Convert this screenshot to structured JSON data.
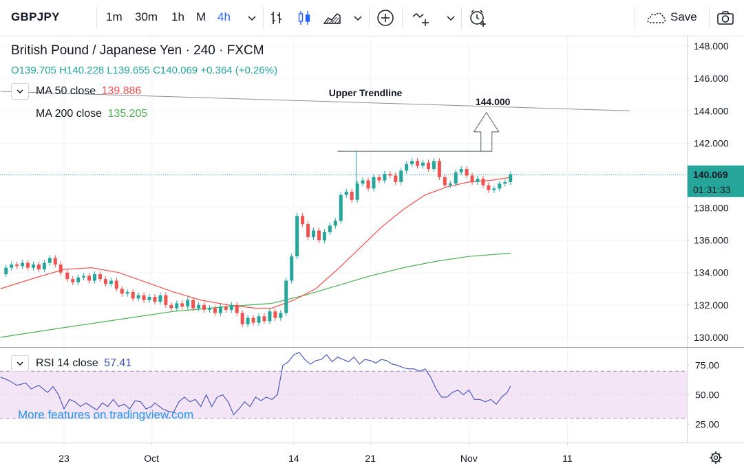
{
  "toolbar": {
    "symbol": "GBPJPY",
    "timeframes": [
      "1m",
      "30m",
      "1h",
      "M",
      "4h"
    ],
    "active_timeframe": "4h",
    "save_label": "Save"
  },
  "legend": {
    "title": "British Pound / Japanese Yen · 240 · FXCM",
    "open_label": "O",
    "open": "139.705",
    "high_label": "H",
    "high": "140.228",
    "low_label": "L",
    "low": "139.655",
    "close_label": "C",
    "close": "140.069",
    "change": "+0.364 (+0.26%)",
    "ma50_label": "MA 50 close",
    "ma50_value": "139.886",
    "ma200_label": "MA 200 close",
    "ma200_value": "135.205",
    "rsi_label": "RSI 14 close",
    "rsi_value": "57.41"
  },
  "promo": "More features on tradingview.com",
  "colors": {
    "up": "#26a69a",
    "down": "#ef5350",
    "ma50": "#ef5350",
    "ma200": "#4caf50",
    "rsi": "#3f51b5",
    "rsi_band": "#f3e5f5",
    "accent": "#2962ff"
  },
  "chart_data": {
    "type": "line",
    "price_axis": {
      "ticks": [
        "148.000",
        "146.000",
        "144.000",
        "142.000",
        "140.000",
        "138.000",
        "136.000",
        "134.000",
        "132.000",
        "130.000"
      ],
      "ylim": [
        129.4,
        148.6
      ]
    },
    "rsi_axis": {
      "ticks": [
        "75.00",
        "50.00",
        "25.00"
      ],
      "band": [
        30,
        70
      ],
      "ylim": [
        10,
        90
      ]
    },
    "x_ticks": [
      "23",
      "Oct",
      "14",
      "21",
      "Nov",
      "11"
    ],
    "x_tick_days": [
      0,
      8,
      21,
      28,
      37,
      46
    ],
    "last_price_label": "140.069",
    "countdown_label": "01:31:33",
    "annotations": {
      "trendline_label": "Upper Trendline",
      "target_label": "144.000"
    },
    "trendline": [
      [
        -5.8,
        145.2
      ],
      [
        51.7,
        144.0
      ]
    ],
    "target_start_price": 141.5,
    "price_path": [
      [
        -5.8,
        133.9
      ],
      [
        -5.3,
        134.3
      ],
      [
        -4.8,
        134.5
      ],
      [
        -4.3,
        134.4
      ],
      [
        -3.8,
        134.6
      ],
      [
        -3.3,
        134.3
      ],
      [
        -2.8,
        134.5
      ],
      [
        -2.3,
        134.2
      ],
      [
        -1.8,
        134.6
      ],
      [
        -1.3,
        134.9
      ],
      [
        -0.8,
        134.5
      ],
      [
        -0.3,
        134.0
      ],
      [
        0.3,
        133.6
      ],
      [
        0.8,
        133.4
      ],
      [
        1.3,
        133.7
      ],
      [
        1.8,
        133.8
      ],
      [
        2.3,
        133.5
      ],
      [
        2.8,
        133.9
      ],
      [
        3.3,
        133.6
      ],
      [
        3.8,
        133.3
      ],
      [
        4.3,
        133.5
      ],
      [
        4.8,
        133.0
      ],
      [
        5.3,
        132.7
      ],
      [
        5.8,
        132.8
      ],
      [
        6.3,
        132.4
      ],
      [
        6.8,
        132.6
      ],
      [
        7.3,
        132.3
      ],
      [
        7.8,
        132.5
      ],
      [
        8.3,
        132.2
      ],
      [
        8.8,
        132.6
      ],
      [
        9.3,
        132.0
      ],
      [
        9.8,
        131.8
      ],
      [
        10.3,
        132.1
      ],
      [
        10.8,
        131.9
      ],
      [
        11.3,
        132.3
      ],
      [
        11.8,
        131.8
      ],
      [
        12.3,
        132.0
      ],
      [
        12.8,
        131.7
      ],
      [
        13.3,
        131.8
      ],
      [
        13.8,
        131.5
      ],
      [
        14.3,
        131.9
      ],
      [
        14.8,
        131.7
      ],
      [
        15.3,
        132.0
      ],
      [
        15.8,
        131.5
      ],
      [
        16.3,
        130.8
      ],
      [
        16.8,
        131.2
      ],
      [
        17.3,
        130.9
      ],
      [
        17.8,
        131.3
      ],
      [
        18.3,
        131.0
      ],
      [
        18.8,
        131.6
      ],
      [
        19.3,
        131.2
      ],
      [
        19.8,
        131.5
      ],
      [
        20.3,
        133.5
      ],
      [
        20.8,
        135.0
      ],
      [
        21.3,
        137.5
      ],
      [
        21.8,
        137.0
      ],
      [
        22.3,
        136.2
      ],
      [
        22.8,
        136.6
      ],
      [
        23.3,
        136.0
      ],
      [
        23.8,
        136.5
      ],
      [
        24.3,
        136.9
      ],
      [
        24.8,
        137.2
      ],
      [
        25.3,
        138.8
      ],
      [
        25.8,
        139.0
      ],
      [
        26.3,
        138.5
      ],
      [
        26.8,
        139.5
      ],
      [
        27.3,
        139.7
      ],
      [
        27.8,
        139.2
      ],
      [
        28.3,
        139.9
      ],
      [
        28.8,
        139.7
      ],
      [
        29.3,
        140.1
      ],
      [
        29.8,
        140.0
      ],
      [
        30.3,
        139.6
      ],
      [
        30.8,
        140.3
      ],
      [
        31.3,
        140.7
      ],
      [
        31.8,
        140.9
      ],
      [
        32.3,
        140.6
      ],
      [
        32.8,
        140.8
      ],
      [
        33.3,
        140.4
      ],
      [
        33.8,
        140.9
      ],
      [
        34.3,
        139.9
      ],
      [
        34.8,
        139.4
      ],
      [
        35.3,
        139.5
      ],
      [
        35.8,
        140.2
      ],
      [
        36.3,
        140.4
      ],
      [
        36.8,
        140.0
      ],
      [
        37.3,
        139.6
      ],
      [
        37.8,
        139.8
      ],
      [
        38.3,
        139.4
      ],
      [
        38.8,
        139.1
      ],
      [
        39.3,
        139.2
      ],
      [
        39.8,
        139.5
      ],
      [
        40.3,
        139.6
      ],
      [
        40.8,
        140.069
      ]
    ],
    "ma50_path": [
      [
        -5.8,
        133.0
      ],
      [
        -3.0,
        133.6
      ],
      [
        0.0,
        134.2
      ],
      [
        2.5,
        134.3
      ],
      [
        5.0,
        134.0
      ],
      [
        7.5,
        133.4
      ],
      [
        10.0,
        132.8
      ],
      [
        12.5,
        132.3
      ],
      [
        15.0,
        132.0
      ],
      [
        17.5,
        131.8
      ],
      [
        19.0,
        131.8
      ],
      [
        21.0,
        132.3
      ],
      [
        23.0,
        133.0
      ],
      [
        25.0,
        134.2
      ],
      [
        27.0,
        135.5
      ],
      [
        29.0,
        136.8
      ],
      [
        31.0,
        137.9
      ],
      [
        33.0,
        138.8
      ],
      [
        35.0,
        139.3
      ],
      [
        37.0,
        139.6
      ],
      [
        39.0,
        139.7
      ],
      [
        40.8,
        139.886
      ]
    ],
    "ma200_path": [
      [
        -5.8,
        130.0
      ],
      [
        0.0,
        130.6
      ],
      [
        5.0,
        131.1
      ],
      [
        10.0,
        131.6
      ],
      [
        15.0,
        131.9
      ],
      [
        19.0,
        132.1
      ],
      [
        22.0,
        132.6
      ],
      [
        25.0,
        133.2
      ],
      [
        28.0,
        133.8
      ],
      [
        31.0,
        134.3
      ],
      [
        34.0,
        134.7
      ],
      [
        37.0,
        135.0
      ],
      [
        40.8,
        135.205
      ]
    ],
    "rsi_path": [
      [
        -5.8,
        65
      ],
      [
        -5.0,
        62
      ],
      [
        -4.3,
        58
      ],
      [
        -3.5,
        60
      ],
      [
        -3.0,
        55
      ],
      [
        -2.3,
        58
      ],
      [
        -1.5,
        52
      ],
      [
        -1.0,
        57
      ],
      [
        -0.5,
        50
      ],
      [
        0.0,
        38
      ],
      [
        0.5,
        46
      ],
      [
        1.0,
        44
      ],
      [
        1.5,
        40
      ],
      [
        2.0,
        43
      ],
      [
        2.5,
        40
      ],
      [
        3.0,
        37
      ],
      [
        3.5,
        43
      ],
      [
        4.0,
        40
      ],
      [
        4.5,
        46
      ],
      [
        5.0,
        40
      ],
      [
        5.5,
        42
      ],
      [
        6.0,
        38
      ],
      [
        6.5,
        45
      ],
      [
        7.0,
        44
      ],
      [
        7.5,
        38
      ],
      [
        8.0,
        40
      ],
      [
        8.3,
        43
      ],
      [
        9.0,
        38
      ],
      [
        9.5,
        36
      ],
      [
        10.0,
        35
      ],
      [
        10.5,
        44
      ],
      [
        11.0,
        48
      ],
      [
        11.5,
        44
      ],
      [
        12.0,
        46
      ],
      [
        12.5,
        40
      ],
      [
        13.0,
        50
      ],
      [
        13.5,
        40
      ],
      [
        14.0,
        48
      ],
      [
        14.5,
        50
      ],
      [
        15.0,
        44
      ],
      [
        15.5,
        33
      ],
      [
        16.0,
        38
      ],
      [
        16.5,
        44
      ],
      [
        17.0,
        40
      ],
      [
        17.5,
        48
      ],
      [
        18.0,
        45
      ],
      [
        18.5,
        48
      ],
      [
        19.0,
        46
      ],
      [
        19.5,
        50
      ],
      [
        20.0,
        75
      ],
      [
        20.5,
        78
      ],
      [
        21.0,
        84
      ],
      [
        21.5,
        86
      ],
      [
        22.0,
        80
      ],
      [
        22.5,
        76
      ],
      [
        23.0,
        79
      ],
      [
        23.5,
        80
      ],
      [
        24.0,
        84
      ],
      [
        24.5,
        78
      ],
      [
        25.0,
        82
      ],
      [
        25.5,
        80
      ],
      [
        26.0,
        78
      ],
      [
        26.5,
        82
      ],
      [
        27.0,
        76
      ],
      [
        27.5,
        80
      ],
      [
        28.0,
        79
      ],
      [
        28.5,
        77
      ],
      [
        29.0,
        80
      ],
      [
        29.5,
        79
      ],
      [
        30.0,
        76
      ],
      [
        30.5,
        75
      ],
      [
        31.0,
        73
      ],
      [
        31.5,
        72
      ],
      [
        32.0,
        72
      ],
      [
        32.5,
        70
      ],
      [
        33.0,
        72
      ],
      [
        33.5,
        65
      ],
      [
        34.0,
        55
      ],
      [
        34.5,
        48
      ],
      [
        35.0,
        48
      ],
      [
        35.5,
        52
      ],
      [
        36.0,
        54
      ],
      [
        36.5,
        50
      ],
      [
        37.0,
        54
      ],
      [
        37.5,
        46
      ],
      [
        38.0,
        46
      ],
      [
        38.5,
        44
      ],
      [
        39.0,
        46
      ],
      [
        39.5,
        42
      ],
      [
        40.0,
        48
      ],
      [
        40.5,
        52
      ],
      [
        40.8,
        57.41
      ]
    ]
  }
}
